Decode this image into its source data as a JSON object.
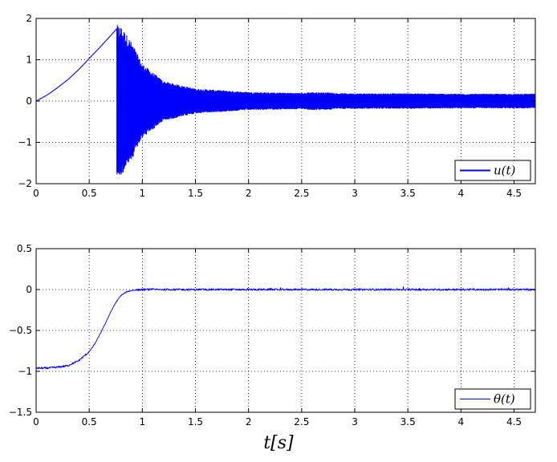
{
  "chart_data": [
    {
      "type": "line",
      "title": "",
      "xlabel": "",
      "ylabel": "",
      "xlim": [
        0,
        4.7
      ],
      "ylim": [
        -2,
        2
      ],
      "xticks": [
        0,
        0.5,
        1,
        1.5,
        2,
        2.5,
        3,
        3.5,
        4,
        4.5
      ],
      "xtick_labels": [
        "0",
        "0.5",
        "1",
        "1.5",
        "2",
        "2.5",
        "3",
        "3.5",
        "4",
        "4.5"
      ],
      "yticks": [
        -2,
        -1,
        0,
        1,
        2
      ],
      "ytick_labels": [
        "−2",
        "−1",
        "0",
        "1",
        "2"
      ],
      "grid": true,
      "legend_position": "bottom-right",
      "series": [
        {
          "name": "u(t)",
          "color": "#0000ff",
          "description_points": {
            "smooth_segment_x": [
              0,
              0.1,
              0.2,
              0.3,
              0.4,
              0.5,
              0.6,
              0.7,
              0.76
            ],
            "smooth_segment_y": [
              0.0,
              0.14,
              0.32,
              0.52,
              0.76,
              1.03,
              1.3,
              1.58,
              1.75
            ],
            "oscillation_envelope_x": [
              0.76,
              0.8,
              0.9,
              1.0,
              1.2,
              1.5,
              2.0,
              2.5,
              3.0,
              3.5,
              4.0,
              4.7
            ],
            "oscillation_envelope_y": [
              1.75,
              1.72,
              1.35,
              0.85,
              0.45,
              0.28,
              0.2,
              0.18,
              0.17,
              0.17,
              0.16,
              0.16
            ]
          }
        }
      ]
    },
    {
      "type": "line",
      "title": "",
      "xlabel": "t[s]",
      "ylabel": "",
      "xlim": [
        0,
        4.7
      ],
      "ylim": [
        -1.5,
        0.5
      ],
      "xticks": [
        0,
        0.5,
        1,
        1.5,
        2,
        2.5,
        3,
        3.5,
        4,
        4.5
      ],
      "xtick_labels": [
        "0",
        "0.5",
        "1",
        "1.5",
        "2",
        "2.5",
        "3",
        "3.5",
        "4",
        "4.5"
      ],
      "yticks": [
        -1.5,
        -1,
        -0.5,
        0,
        0.5
      ],
      "ytick_labels": [
        "−1.5",
        "−1",
        "−0.5",
        "0",
        "0.5"
      ],
      "grid": true,
      "legend_position": "bottom-right",
      "series": [
        {
          "name": "θ(t)",
          "color": "#0000ff",
          "x": [
            0,
            0.1,
            0.2,
            0.3,
            0.4,
            0.5,
            0.55,
            0.6,
            0.65,
            0.7,
            0.75,
            0.8,
            0.85,
            0.9,
            1.0,
            1.2,
            1.5,
            2.0,
            2.5,
            3.0,
            3.5,
            4.0,
            4.5,
            4.7
          ],
          "y": [
            -0.96,
            -0.96,
            -0.95,
            -0.93,
            -0.87,
            -0.76,
            -0.67,
            -0.55,
            -0.42,
            -0.28,
            -0.16,
            -0.07,
            -0.03,
            -0.01,
            0.0,
            0.0,
            0.0,
            0.0,
            0.0,
            0.0,
            0.0,
            0.0,
            0.0,
            0.0
          ]
        }
      ]
    }
  ]
}
